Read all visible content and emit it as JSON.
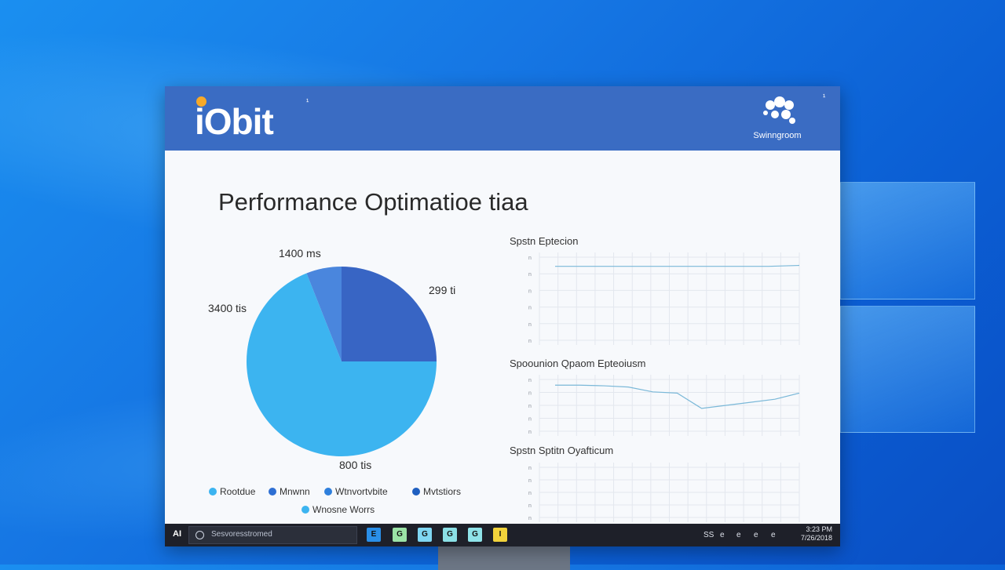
{
  "app": {
    "logo": "iObit",
    "logo_sup": "¹",
    "brand_text": "Swinngroom",
    "header_mark": "¹"
  },
  "main": {
    "title": "Performance Optimatioe tiaa"
  },
  "pie": {
    "labels": {
      "top": "1400 ms",
      "right": "299 ti",
      "left": "3400 tis",
      "bottom": "800 tis"
    },
    "slices": [
      {
        "name": "Rootdue",
        "value": 69,
        "color": "#3cb4f0"
      },
      {
        "name": "Mnwnn",
        "value": 6,
        "color": "#4a86dd"
      },
      {
        "name": "Wtnvortvbite",
        "value": 25,
        "color": "#3865c4"
      }
    ]
  },
  "legend": {
    "items": [
      {
        "label": "Rootdue",
        "color": "#3cb4f0"
      },
      {
        "label": "Mnwnn",
        "color": "#2e6fd3"
      },
      {
        "label": "Wtnvortvbite",
        "color": "#2e7fdc"
      },
      {
        "label": "Mvtstiors",
        "color": "#1f5fc0"
      },
      {
        "label": "Wnosne Worrs",
        "color": "#3cb4f0"
      }
    ]
  },
  "graphs": [
    {
      "title": "Spstn Eptecion",
      "y_ticks": [
        "n",
        "n",
        "n",
        "n",
        "n",
        "n"
      ],
      "line": [
        0.85,
        0.85,
        0.85,
        0.85,
        0.85,
        0.85,
        0.85,
        0.85,
        0.86
      ]
    },
    {
      "title": "Spoounion Qpaom Epteoiusm",
      "y_ticks": [
        "n",
        "n",
        "n",
        "n",
        "n"
      ],
      "line": [
        0.83,
        0.83,
        0.82,
        0.8,
        0.72,
        0.7,
        0.45,
        0.5,
        0.55,
        0.6,
        0.7
      ]
    },
    {
      "title": "Spstn Sptitn Oyafticum",
      "y_ticks": [
        "n",
        "n",
        "n",
        "n",
        "n"
      ],
      "line": []
    }
  ],
  "taskbar": {
    "start": "AI",
    "search_placeholder": "Sesvoresstromed",
    "apps": [
      {
        "label": "E",
        "color": "#2a8fe8"
      },
      {
        "label": "G",
        "color": "#9be3a6"
      },
      {
        "label": "G",
        "color": "#7fd6f2"
      },
      {
        "label": "G",
        "color": "#8be0e6"
      },
      {
        "label": "G",
        "color": "#8fe3e9"
      },
      {
        "label": "I",
        "color": "#f2d33b"
      }
    ],
    "tray": [
      "SS",
      "e",
      "e",
      "e",
      "e"
    ],
    "time": "3:23 PM",
    "date": "7/26/2018"
  }
}
